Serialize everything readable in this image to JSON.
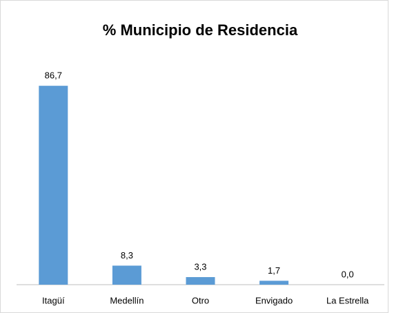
{
  "chart_data": {
    "type": "bar",
    "title": "% Municipio de Residencia",
    "categories": [
      "Itagüí",
      "Medellín",
      "Otro",
      "Envigado",
      "La Estrella"
    ],
    "values": [
      86.7,
      8.3,
      3.3,
      1.7,
      0.0
    ],
    "value_labels": [
      "86,7",
      "8,3",
      "3,3",
      "1,7",
      "0,0"
    ],
    "color": "#5b9bd5",
    "ylim": [
      0,
      100
    ]
  }
}
